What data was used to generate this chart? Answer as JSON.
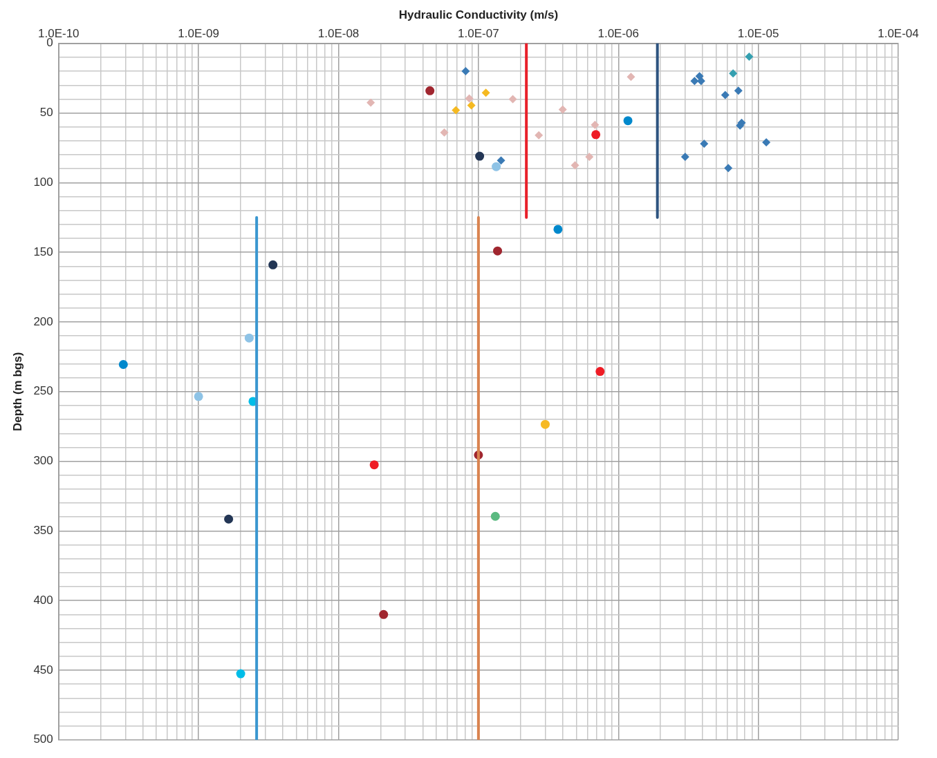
{
  "chart_data": {
    "type": "scatter",
    "xlabel": "Hydraulic Conductivity (m/s)",
    "ylabel": "Depth (m bgs)",
    "log": "x",
    "grid": true,
    "legend": false,
    "xlim": [
      1e-10,
      0.0001
    ],
    "ylim": [
      500,
      0
    ],
    "xticks": [
      {
        "value": 1e-10,
        "label": "1.0E-10"
      },
      {
        "value": 2e-10,
        "label": null
      },
      {
        "value": 3e-10,
        "label": null
      },
      {
        "value": 4e-10,
        "label": null
      },
      {
        "value": 5e-10,
        "label": null
      },
      {
        "value": 6e-10,
        "label": null
      },
      {
        "value": 7e-10,
        "label": null
      },
      {
        "value": 8e-10,
        "label": null
      },
      {
        "value": 9e-10,
        "label": null
      },
      {
        "value": 1e-09,
        "label": "1.0E-09"
      },
      {
        "value": 2e-09,
        "label": null
      },
      {
        "value": 3e-09,
        "label": null
      },
      {
        "value": 4e-09,
        "label": null
      },
      {
        "value": 5e-09,
        "label": null
      },
      {
        "value": 6e-09,
        "label": null
      },
      {
        "value": 7e-09,
        "label": null
      },
      {
        "value": 8e-09,
        "label": null
      },
      {
        "value": 9e-09,
        "label": null
      },
      {
        "value": 1e-08,
        "label": "1.0E-08"
      },
      {
        "value": 2e-08,
        "label": null
      },
      {
        "value": 3e-08,
        "label": null
      },
      {
        "value": 4e-08,
        "label": null
      },
      {
        "value": 5e-08,
        "label": null
      },
      {
        "value": 6e-08,
        "label": null
      },
      {
        "value": 7e-08,
        "label": null
      },
      {
        "value": 8e-08,
        "label": null
      },
      {
        "value": 9e-08,
        "label": null
      },
      {
        "value": 1e-07,
        "label": "1.0E-07"
      },
      {
        "value": 2e-07,
        "label": null
      },
      {
        "value": 3e-07,
        "label": null
      },
      {
        "value": 4e-07,
        "label": null
      },
      {
        "value": 5e-07,
        "label": null
      },
      {
        "value": 6e-07,
        "label": null
      },
      {
        "value": 7e-07,
        "label": null
      },
      {
        "value": 8e-07,
        "label": null
      },
      {
        "value": 9e-07,
        "label": null
      },
      {
        "value": 1e-06,
        "label": "1.0E-06"
      },
      {
        "value": 2e-06,
        "label": null
      },
      {
        "value": 3e-06,
        "label": null
      },
      {
        "value": 4e-06,
        "label": null
      },
      {
        "value": 5e-06,
        "label": null
      },
      {
        "value": 6e-06,
        "label": null
      },
      {
        "value": 7e-06,
        "label": null
      },
      {
        "value": 8e-06,
        "label": null
      },
      {
        "value": 9e-06,
        "label": null
      },
      {
        "value": 1e-05,
        "label": "1.0E-05"
      },
      {
        "value": 2e-05,
        "label": null
      },
      {
        "value": 3e-05,
        "label": null
      },
      {
        "value": 4e-05,
        "label": null
      },
      {
        "value": 5e-05,
        "label": null
      },
      {
        "value": 6e-05,
        "label": null
      },
      {
        "value": 7e-05,
        "label": null
      },
      {
        "value": 8e-05,
        "label": null
      },
      {
        "value": 9e-05,
        "label": null
      },
      {
        "value": 0.0001,
        "label": "1.0E-04"
      }
    ],
    "yticks": [
      0,
      {
        "value": 10,
        "label": null
      },
      {
        "value": 20,
        "label": null
      },
      {
        "value": 30,
        "label": null
      },
      {
        "value": 40,
        "label": null
      },
      50,
      {
        "value": 60,
        "label": null
      },
      {
        "value": 70,
        "label": null
      },
      {
        "value": 80,
        "label": null
      },
      {
        "value": 90,
        "label": null
      },
      100,
      {
        "value": 110,
        "label": null
      },
      {
        "value": 120,
        "label": null
      },
      {
        "value": 130,
        "label": null
      },
      {
        "value": 140,
        "label": null
      },
      150,
      {
        "value": 160,
        "label": null
      },
      {
        "value": 170,
        "label": null
      },
      {
        "value": 180,
        "label": null
      },
      {
        "value": 190,
        "label": null
      },
      200,
      {
        "value": 210,
        "label": null
      },
      {
        "value": 220,
        "label": null
      },
      {
        "value": 230,
        "label": null
      },
      {
        "value": 240,
        "label": null
      },
      250,
      {
        "value": 260,
        "label": null
      },
      {
        "value": 270,
        "label": null
      },
      {
        "value": 280,
        "label": null
      },
      {
        "value": 290,
        "label": null
      },
      300,
      {
        "value": 310,
        "label": null
      },
      {
        "value": 320,
        "label": null
      },
      {
        "value": 330,
        "label": null
      },
      {
        "value": 340,
        "label": null
      },
      350,
      {
        "value": 360,
        "label": null
      },
      {
        "value": 370,
        "label": null
      },
      {
        "value": 380,
        "label": null
      },
      {
        "value": 390,
        "label": null
      },
      400,
      {
        "value": 410,
        "label": null
      },
      {
        "value": 420,
        "label": null
      },
      {
        "value": 430,
        "label": null
      },
      {
        "value": 440,
        "label": null
      },
      450,
      {
        "value": 460,
        "label": null
      },
      {
        "value": 470,
        "label": null
      },
      {
        "value": 480,
        "label": null
      },
      {
        "value": 490,
        "label": null
      },
      500
    ],
    "series": [
      {
        "type": "line",
        "color": "#3a97d0",
        "x": [
          2.6e-09,
          2.6e-09
        ],
        "values": [
          125,
          500
        ]
      },
      {
        "type": "line",
        "color": "#d9834f",
        "x": [
          1e-07,
          1e-07
        ],
        "values": [
          125,
          500
        ]
      },
      {
        "type": "line",
        "color": "#e8202a",
        "x": [
          2.2e-07,
          2.2e-07
        ],
        "values": [
          0,
          125
        ]
      },
      {
        "type": "line",
        "color": "#2d537f",
        "x": [
          1.9e-06,
          1.9e-06
        ],
        "values": [
          0,
          125
        ]
      },
      {
        "type": "scatter",
        "marker": "diamond",
        "color": "#e2b6b3",
        "x": [
          1.7e-08,
          8.6e-08,
          1.76e-07,
          5.7e-08,
          4e-07,
          2.7e-07,
          6.8e-07,
          6.2e-07,
          4.9e-07,
          1.23e-06
        ],
        "values": [
          42.5,
          39.5,
          40,
          64,
          47.5,
          66,
          58.5,
          81.5,
          87.5,
          24
        ]
      },
      {
        "type": "scatter",
        "marker": "diamond",
        "color": "#f5b921",
        "x": [
          1.13e-07,
          6.9e-08,
          8.9e-08
        ],
        "values": [
          35.5,
          48,
          44.5
        ]
      },
      {
        "type": "scatter",
        "marker": "diamond",
        "color": "#3a7ab5",
        "x": [
          8.1e-08,
          1.45e-07,
          3.8e-06,
          3.5e-06,
          3.9e-06,
          5.8e-06,
          7.2e-06,
          7.6e-06,
          7.4e-06,
          4.1e-06,
          3e-06,
          6.1e-06,
          1.14e-05
        ],
        "values": [
          20,
          84,
          23.5,
          27,
          27,
          37,
          34,
          57,
          59,
          72,
          81.5,
          89.5,
          71
        ]
      },
      {
        "type": "scatter",
        "marker": "diamond",
        "color": "#35a0b0",
        "x": [
          8.6e-06,
          6.6e-06
        ],
        "values": [
          9.5,
          21.5
        ]
      },
      {
        "type": "scatter",
        "marker": "circle",
        "color": "#a0262f",
        "x": [
          4.5e-08,
          1.37e-07,
          1e-07,
          2.1e-08
        ],
        "values": [
          34,
          149,
          295.5,
          410
        ]
      },
      {
        "type": "scatter",
        "marker": "circle",
        "color": "#ee1c25",
        "x": [
          6.9e-07,
          7.4e-07,
          1.8e-08
        ],
        "values": [
          65.5,
          235.5,
          302.5
        ]
      },
      {
        "type": "scatter",
        "marker": "circle",
        "color": "#0088cc",
        "x": [
          1.17e-06,
          3.7e-07,
          2.9e-10
        ],
        "values": [
          55.5,
          133.5,
          230.5
        ]
      },
      {
        "type": "scatter",
        "marker": "circle",
        "color": "#233655",
        "x": [
          1.02e-07,
          3.4e-09,
          1.64e-09
        ],
        "values": [
          81,
          159,
          341.5
        ]
      },
      {
        "type": "scatter",
        "marker": "circle",
        "color": "#8ec3e6",
        "x": [
          1.34e-07,
          2.3e-09,
          1e-09
        ],
        "values": [
          88.5,
          211.5,
          253.5
        ]
      },
      {
        "type": "scatter",
        "marker": "circle",
        "color": "#00bde8",
        "x": [
          2.45e-09,
          2e-09
        ],
        "values": [
          257,
          452.5
        ]
      },
      {
        "type": "scatter",
        "marker": "circle",
        "color": "#f6b924",
        "x": [
          3e-07
        ],
        "values": [
          273.5
        ]
      },
      {
        "type": "scatter",
        "marker": "circle",
        "color": "#5bba81",
        "x": [
          1.32e-07
        ],
        "values": [
          339.5
        ]
      }
    ]
  }
}
